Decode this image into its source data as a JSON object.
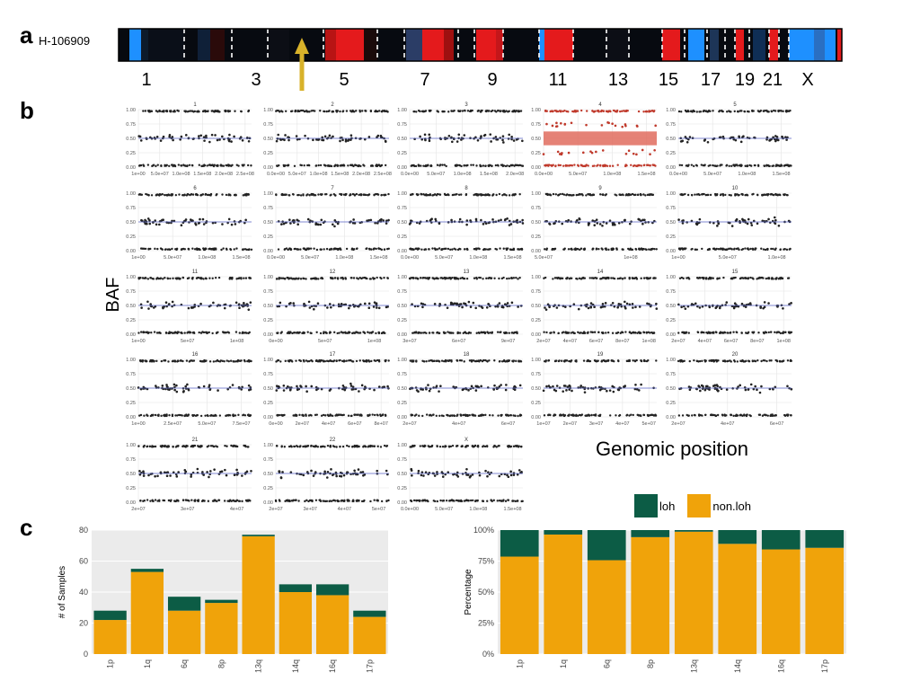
{
  "panels": {
    "a": "a",
    "b": "b",
    "c": "c"
  },
  "panel_a": {
    "sample_id": "H-106909",
    "colors": {
      "loss": "#1e90ff",
      "neutral": "#070a10",
      "gain": "#e41a1c",
      "arrow": "#d8b22a"
    },
    "chromosome_labels": [
      "1",
      "3",
      "5",
      "7",
      "9",
      "11",
      "13",
      "15",
      "17",
      "19",
      "21",
      "X"
    ]
  },
  "chart_data": [
    {
      "type": "scatter",
      "title": "",
      "ylabel": "BAF",
      "xlabel": "Genomic position",
      "y_ticks": [
        "0.00",
        "0.25",
        "0.50",
        "0.75",
        "1.00"
      ],
      "ylim": [
        0,
        1
      ],
      "reference_line": 0.5,
      "colors": {
        "points": "#222222",
        "line": "#5b67c9",
        "highlight": "#c0392b",
        "band": "#e06c5e"
      },
      "facets": [
        {
          "name": "1",
          "x_ticks": [
            "1e+00",
            "5.0e+07",
            "1.0e+08",
            "1.5e+08",
            "2.0e+08",
            "2.5e+08"
          ],
          "highlight": false
        },
        {
          "name": "2",
          "x_ticks": [
            "0.0e+00",
            "5.0e+07",
            "1.0e+08",
            "1.5e+08",
            "2.0e+08",
            "2.5e+08"
          ],
          "highlight": false
        },
        {
          "name": "3",
          "x_ticks": [
            "0.0e+00",
            "5.0e+07",
            "1.0e+08",
            "1.5e+08",
            "2.0e+08"
          ],
          "highlight": false
        },
        {
          "name": "4",
          "x_ticks": [
            "0.0e+00",
            "5.0e+07",
            "1.0e+08",
            "1.5e+08"
          ],
          "highlight": true
        },
        {
          "name": "5",
          "x_ticks": [
            "0.0e+00",
            "5.0e+07",
            "1.0e+08",
            "1.5e+08"
          ],
          "highlight": false
        },
        {
          "name": "6",
          "x_ticks": [
            "1e+00",
            "5.0e+07",
            "1.0e+08",
            "1.5e+08"
          ],
          "highlight": false
        },
        {
          "name": "7",
          "x_ticks": [
            "0.0e+00",
            "5.0e+07",
            "1.0e+08",
            "1.5e+08"
          ],
          "highlight": false
        },
        {
          "name": "8",
          "x_ticks": [
            "0.0e+00",
            "5.0e+07",
            "1.0e+08",
            "1.5e+08"
          ],
          "highlight": false
        },
        {
          "name": "9",
          "x_ticks": [
            "5.0e+07",
            "1e+08"
          ],
          "highlight": false
        },
        {
          "name": "10",
          "x_ticks": [
            "1e+00",
            "5.0e+07",
            "1.0e+08"
          ],
          "highlight": false
        },
        {
          "name": "11",
          "x_ticks": [
            "1e+00",
            "5e+07",
            "1e+08"
          ],
          "highlight": false
        },
        {
          "name": "12",
          "x_ticks": [
            "0e+00",
            "5e+07",
            "1e+08"
          ],
          "highlight": false
        },
        {
          "name": "13",
          "x_ticks": [
            "3e+07",
            "6e+07",
            "9e+07"
          ],
          "highlight": false
        },
        {
          "name": "14",
          "x_ticks": [
            "2e+07",
            "4e+07",
            "6e+07",
            "8e+07",
            "1e+08"
          ],
          "highlight": false
        },
        {
          "name": "15",
          "x_ticks": [
            "2e+07",
            "4e+07",
            "6e+07",
            "8e+07",
            "1e+08"
          ],
          "highlight": false
        },
        {
          "name": "16",
          "x_ticks": [
            "1e+00",
            "2.5e+07",
            "5.0e+07",
            "7.5e+07"
          ],
          "highlight": false
        },
        {
          "name": "17",
          "x_ticks": [
            "0e+00",
            "2e+07",
            "4e+07",
            "6e+07",
            "8e+07"
          ],
          "highlight": false
        },
        {
          "name": "18",
          "x_ticks": [
            "2e+07",
            "4e+07",
            "6e+07"
          ],
          "highlight": false
        },
        {
          "name": "19",
          "x_ticks": [
            "1e+07",
            "2e+07",
            "3e+07",
            "4e+07",
            "5e+07"
          ],
          "highlight": false
        },
        {
          "name": "20",
          "x_ticks": [
            "2e+07",
            "4e+07",
            "6e+07"
          ],
          "highlight": false
        },
        {
          "name": "21",
          "x_ticks": [
            "2e+07",
            "3e+07",
            "4e+07"
          ],
          "highlight": false
        },
        {
          "name": "22",
          "x_ticks": [
            "2e+07",
            "3e+07",
            "4e+07",
            "5e+07"
          ],
          "highlight": false
        },
        {
          "name": "X",
          "x_ticks": [
            "0.0e+00",
            "5.0e+07",
            "1.0e+08",
            "1.5e+08"
          ],
          "highlight": false
        }
      ]
    },
    {
      "type": "bar",
      "stacked": true,
      "title": "",
      "xlabel": "",
      "ylabel": "# of Samples",
      "ylim": [
        0,
        80
      ],
      "y_ticks": [
        0,
        20,
        40,
        60,
        80
      ],
      "categories": [
        "1p",
        "1q",
        "6q",
        "8p",
        "13q",
        "14q",
        "16q",
        "17p"
      ],
      "series": [
        {
          "name": "non.loh",
          "color": "#f0a30a",
          "values": [
            22,
            53,
            28,
            33,
            76,
            40,
            38,
            24
          ]
        },
        {
          "name": "loh",
          "color": "#0c5c45",
          "values": [
            6,
            2,
            9,
            2,
            1,
            5,
            7,
            4
          ]
        }
      ],
      "legend": "top"
    },
    {
      "type": "bar",
      "stacked": true,
      "title": "",
      "xlabel": "",
      "ylabel": "Percentage",
      "ylim": [
        0,
        100
      ],
      "y_ticks": [
        "0%",
        "25%",
        "50%",
        "75%",
        "100%"
      ],
      "categories": [
        "1p",
        "1q",
        "6q",
        "8p",
        "13q",
        "14q",
        "16q",
        "17p"
      ],
      "series": [
        {
          "name": "non.loh",
          "color": "#f0a30a",
          "values": [
            78.6,
            96.4,
            75.7,
            94.3,
            98.7,
            88.9,
            84.4,
            85.7
          ]
        },
        {
          "name": "loh",
          "color": "#0c5c45",
          "values": [
            21.4,
            3.6,
            24.3,
            5.7,
            1.3,
            11.1,
            15.6,
            14.3
          ]
        }
      ],
      "legend": "top"
    }
  ]
}
